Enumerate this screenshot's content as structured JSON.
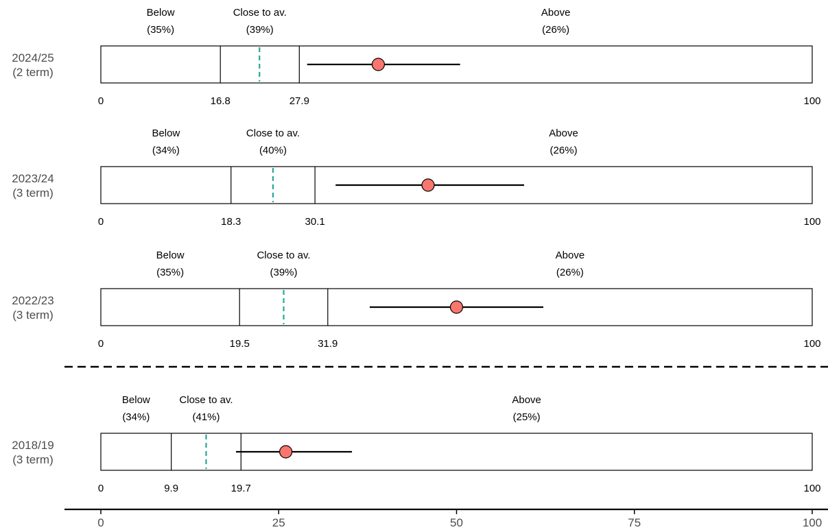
{
  "colors": {
    "point": "#f8766d",
    "median": "#26a69a",
    "line": "#000000",
    "axis_text": "#4d4d4d"
  },
  "chart_data": {
    "type": "interval",
    "xlim": [
      0,
      100
    ],
    "axis_ticks": [
      0,
      25,
      50,
      75,
      100
    ],
    "panels": [
      {
        "label_line1": "2024/25",
        "label_line2": "(2 term)",
        "thresholds": [
          16.8,
          27.9
        ],
        "threshold_labels": [
          "16.8",
          "27.9"
        ],
        "median": 22.3,
        "point": 39,
        "ci": [
          29,
          50.5
        ],
        "categories": [
          {
            "name": "Below",
            "pct": "(35%)"
          },
          {
            "name": "Close to av.",
            "pct": "(39%)"
          },
          {
            "name": "Above",
            "pct": "(26%)"
          }
        ]
      },
      {
        "label_line1": "2023/24",
        "label_line2": "(3 term)",
        "thresholds": [
          18.3,
          30.1
        ],
        "threshold_labels": [
          "18.3",
          "30.1"
        ],
        "median": 24.2,
        "point": 46,
        "ci": [
          33,
          59.5
        ],
        "categories": [
          {
            "name": "Below",
            "pct": "(34%)"
          },
          {
            "name": "Close to av.",
            "pct": "(40%)"
          },
          {
            "name": "Above",
            "pct": "(26%)"
          }
        ]
      },
      {
        "label_line1": "2022/23",
        "label_line2": "(3 term)",
        "thresholds": [
          19.5,
          31.9
        ],
        "threshold_labels": [
          "19.5",
          "31.9"
        ],
        "median": 25.7,
        "point": 50,
        "ci": [
          37.8,
          62.2
        ],
        "categories": [
          {
            "name": "Below",
            "pct": "(35%)"
          },
          {
            "name": "Close to av.",
            "pct": "(39%)"
          },
          {
            "name": "Above",
            "pct": "(26%)"
          }
        ]
      },
      {
        "label_line1": "2018/19",
        "label_line2": "(3 term)",
        "thresholds": [
          9.9,
          19.7
        ],
        "threshold_labels": [
          "9.9",
          "19.7"
        ],
        "median": 14.8,
        "point": 26,
        "ci": [
          19,
          35.3
        ],
        "categories": [
          {
            "name": "Below",
            "pct": "(34%)"
          },
          {
            "name": "Close to av.",
            "pct": "(41%)"
          },
          {
            "name": "Above",
            "pct": "(25%)"
          }
        ]
      }
    ]
  }
}
